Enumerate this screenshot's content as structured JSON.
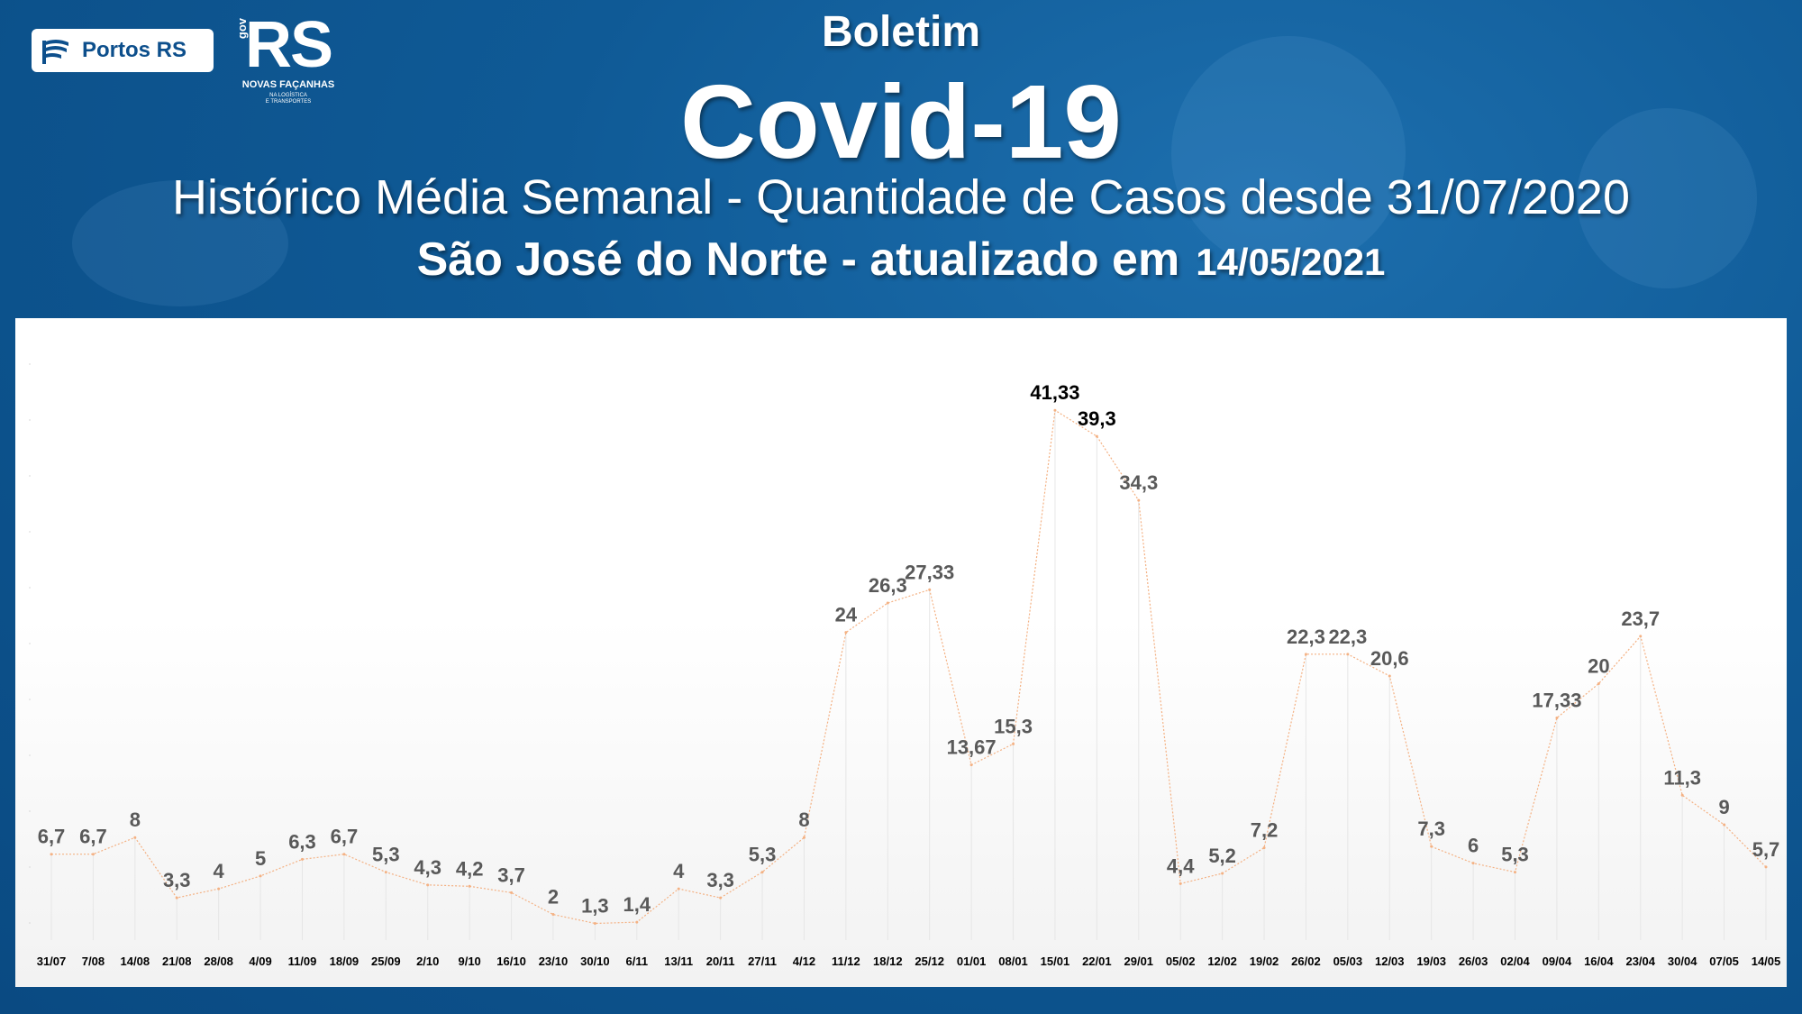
{
  "header": {
    "boletim": "Boletim",
    "title": "Covid-19",
    "subtitle": "Histórico Média Semanal - Quantidade de Casos desde 31/07/2020",
    "location": "São José do Norte - atualizado em",
    "update_date": "14/05/2021"
  },
  "logos": {
    "portos": "Portos RS",
    "rs": "RS",
    "gov": "gov",
    "slogan": "NOVAS FAÇANHAS",
    "sub_line1": "NA LOGÍSTICA",
    "sub_line2": "E TRANSPORTES"
  },
  "colors": {
    "background": "#0f5a96",
    "line": "#f4b183",
    "label": "#595959",
    "peak_label": "#000000"
  },
  "chart_data": {
    "type": "line",
    "title": "",
    "xlabel": "",
    "ylabel": "",
    "ylim": [
      0,
      45
    ],
    "grid": false,
    "categories": [
      "31/07",
      "7/08",
      "14/08",
      "21/08",
      "28/08",
      "4/09",
      "11/09",
      "18/09",
      "25/09",
      "2/10",
      "9/10",
      "16/10",
      "23/10",
      "30/10",
      "6/11",
      "13/11",
      "20/11",
      "27/11",
      "4/12",
      "11/12",
      "18/12",
      "25/12",
      "01/01",
      "08/01",
      "15/01",
      "22/01",
      "29/01",
      "05/02",
      "12/02",
      "19/02",
      "26/02",
      "05/03",
      "12/03",
      "19/03",
      "26/03",
      "02/04",
      "09/04",
      "16/04",
      "23/04",
      "30/04",
      "07/05",
      "14/05"
    ],
    "values": [
      6.7,
      6.7,
      8,
      3.3,
      4,
      5,
      6.3,
      6.7,
      5.3,
      4.3,
      4.2,
      3.7,
      2,
      1.3,
      1.4,
      4,
      3.3,
      5.3,
      8,
      24,
      26.3,
      27.33,
      13.67,
      15.3,
      41.33,
      39.3,
      34.3,
      4.4,
      5.2,
      7.2,
      22.3,
      22.3,
      20.6,
      7.3,
      6,
      5.3,
      17.33,
      20,
      23.7,
      11.3,
      9,
      5.7
    ],
    "data_labels": [
      "6,7",
      "6,7",
      "8",
      "3,3",
      "4",
      "5",
      "6,3",
      "6,7",
      "5,3",
      "4,3",
      "4,2",
      "3,7",
      "2",
      "1,3",
      "1,4",
      "4",
      "3,3",
      "5,3",
      "8",
      "24",
      "26,3",
      "27,33",
      "13,67",
      "15,3",
      "41,33",
      "39,3",
      "34,3",
      "4,4",
      "5,2",
      "7,2",
      "22,3",
      "22,3",
      "20,6",
      "7,3",
      "6",
      "5,3",
      "17,33",
      "20",
      "23,7",
      "11,3",
      "9",
      "5,7"
    ],
    "emphasized_labels": [
      24,
      25
    ]
  }
}
